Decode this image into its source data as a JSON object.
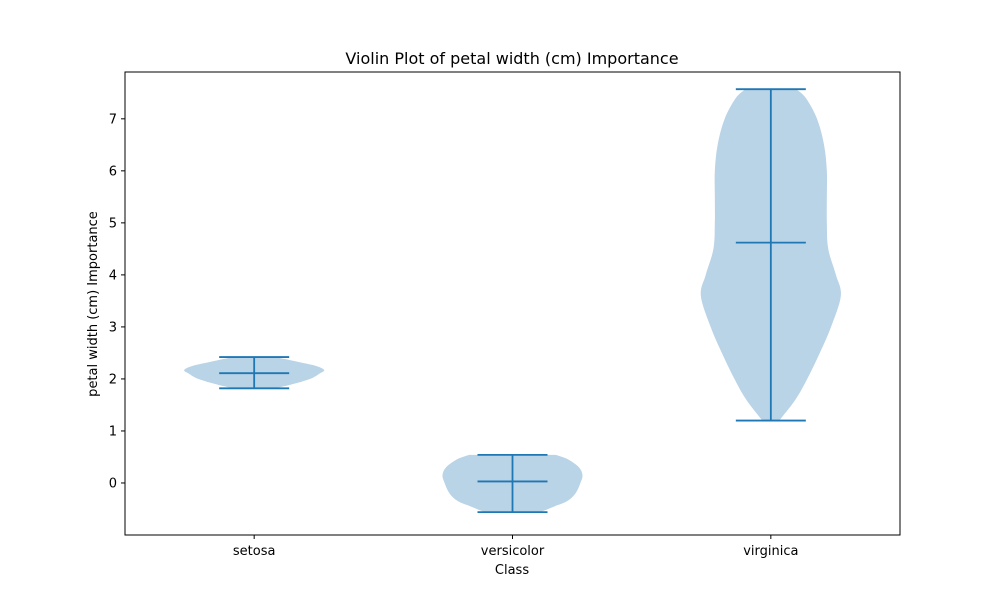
{
  "chart_data": {
    "type": "violin",
    "title": "Violin Plot of petal width (cm) Importance",
    "xlabel": "Class",
    "ylabel": "petal width (cm) Importance",
    "categories": [
      "setosa",
      "versicolor",
      "virginica"
    ],
    "ylim": [
      -1.0,
      7.9
    ],
    "yticks": [
      0,
      1,
      2,
      3,
      4,
      5,
      6,
      7
    ],
    "grid": false,
    "colors": {
      "body": "#b9d3e7",
      "lines": "#1f77b4"
    },
    "violins": [
      {
        "category": "setosa",
        "min": 1.82,
        "mean": 2.11,
        "max": 2.42,
        "profile": [
          [
            1.82,
            0.3
          ],
          [
            1.9,
            0.55
          ],
          [
            2.0,
            0.8
          ],
          [
            2.1,
            0.93
          ],
          [
            2.17,
            1.0
          ],
          [
            2.25,
            0.88
          ],
          [
            2.32,
            0.65
          ],
          [
            2.38,
            0.45
          ],
          [
            2.42,
            0.3
          ]
        ]
      },
      {
        "category": "versicolor",
        "min": -0.56,
        "mean": 0.03,
        "max": 0.54,
        "profile": [
          [
            -0.56,
            0.4
          ],
          [
            -0.45,
            0.6
          ],
          [
            -0.35,
            0.78
          ],
          [
            -0.2,
            0.9
          ],
          [
            0.0,
            0.97
          ],
          [
            0.15,
            1.0
          ],
          [
            0.3,
            0.95
          ],
          [
            0.45,
            0.8
          ],
          [
            0.54,
            0.62
          ]
        ]
      },
      {
        "category": "virginica",
        "min": 1.2,
        "mean": 4.62,
        "max": 7.57,
        "profile": [
          [
            1.2,
            0.12
          ],
          [
            1.6,
            0.35
          ],
          [
            2.0,
            0.52
          ],
          [
            2.5,
            0.7
          ],
          [
            3.0,
            0.86
          ],
          [
            3.6,
            1.0
          ],
          [
            4.0,
            0.93
          ],
          [
            4.5,
            0.82
          ],
          [
            5.0,
            0.8
          ],
          [
            5.5,
            0.8
          ],
          [
            6.0,
            0.8
          ],
          [
            6.5,
            0.76
          ],
          [
            7.0,
            0.66
          ],
          [
            7.4,
            0.5
          ],
          [
            7.57,
            0.36
          ]
        ]
      }
    ]
  }
}
